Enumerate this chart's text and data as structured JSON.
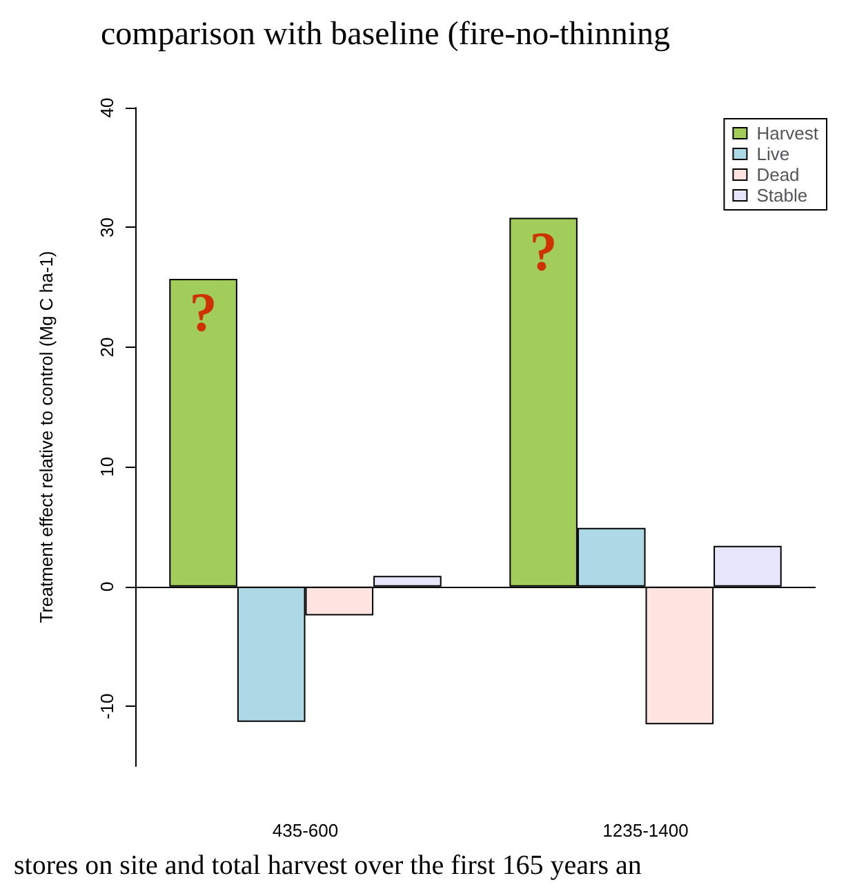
{
  "chart_data": {
    "type": "bar",
    "title": "comparison with baseline (fire-no-thinning",
    "ylabel": "Treatment effect relative to control (Mg C ha-1)",
    "categories": [
      "435-600",
      "1235-1400"
    ],
    "series": [
      {
        "name": "Harvest",
        "color": "#a2cd5a",
        "values": [
          25.7,
          30.8
        ]
      },
      {
        "name": "Live",
        "color": "#add8e6",
        "values": [
          -11.3,
          4.9
        ]
      },
      {
        "name": "Dead",
        "color": "#ffe4e1",
        "values": [
          -2.4,
          -11.5
        ]
      },
      {
        "name": "Stable",
        "color": "#e6e6fa",
        "values": [
          0.9,
          3.4
        ]
      }
    ],
    "ylim": [
      -15,
      40
    ],
    "yticks": [
      -10,
      0,
      10,
      20,
      30,
      40
    ],
    "legend": "top right",
    "grid": false,
    "ref_lines": [
      {
        "axis": "y",
        "value": 0
      }
    ],
    "annotations": [
      "?",
      "?",
      "stores on site and total harvest over the first 165 years an"
    ]
  }
}
